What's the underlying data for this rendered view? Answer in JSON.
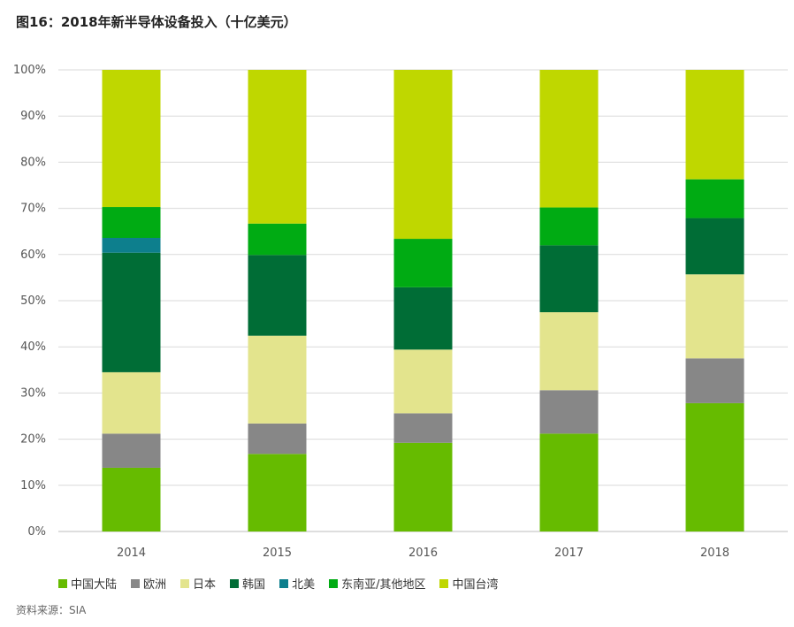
{
  "title": "图16：2018年新半导体设备投入（十亿美元）",
  "source": "资料来源：SIA",
  "chart_data": {
    "type": "bar",
    "stacked": true,
    "categories": [
      "2014",
      "2015",
      "2016",
      "2017",
      "2018"
    ],
    "ylim": [
      0,
      100
    ],
    "yticks": [
      "0%",
      "10%",
      "20%",
      "30%",
      "40%",
      "50%",
      "60%",
      "70%",
      "80%",
      "90%",
      "100%"
    ],
    "grid": true,
    "legend_position": "bottom",
    "series": [
      {
        "name": "中国大陆",
        "color": "#66bb00",
        "values": [
          13.8,
          16.8,
          19.2,
          21.2,
          27.8
        ]
      },
      {
        "name": "欧洲",
        "color": "#878787",
        "values": [
          7.4,
          6.6,
          6.4,
          9.4,
          9.7
        ]
      },
      {
        "name": "日本",
        "color": "#e3e48d",
        "values": [
          13.3,
          19.0,
          13.8,
          16.9,
          18.2
        ]
      },
      {
        "name": "韩国",
        "color": "#006d36",
        "values": [
          25.9,
          17.5,
          13.5,
          14.5,
          12.2
        ]
      },
      {
        "name": "北美",
        "color": "#0d7f8d",
        "values": [
          3.2,
          0.0,
          0.0,
          0.0,
          0.0
        ]
      },
      {
        "name": "东南亚/其他地区",
        "color": "#00ab13",
        "values": [
          6.7,
          6.8,
          10.5,
          8.2,
          8.4
        ]
      },
      {
        "name": "中国台湾",
        "color": "#bfd700",
        "values": [
          29.7,
          33.3,
          36.6,
          29.8,
          23.7
        ]
      }
    ]
  }
}
